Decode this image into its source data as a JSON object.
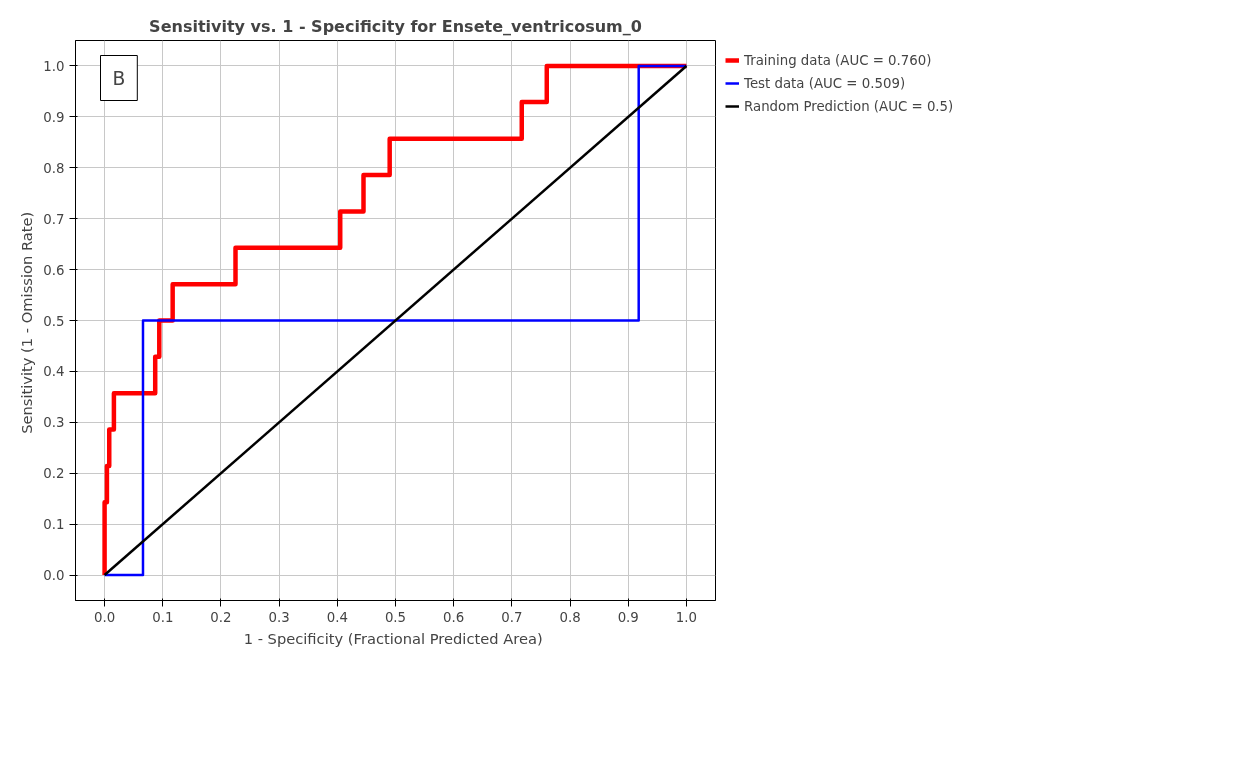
{
  "chart_data": {
    "type": "line",
    "title": "Sensitivity vs. 1 - Specificity for Ensete_ventricosum_0",
    "xlabel": "1 - Specificity  (Fractional Predicted Area)",
    "ylabel": "Sensitivity  (1 - Omission Rate)",
    "annotations": [
      "B"
    ],
    "series": [
      {
        "name": "Training data (AUC = 0.760)",
        "color": "#ff0000",
        "x": [
          0,
          0,
          0.004,
          0.004,
          0.008,
          0.008,
          0.016,
          0.016,
          0.087,
          0.087,
          0.094,
          0.094,
          0.117,
          0.117,
          0.225,
          0.225,
          0.405,
          0.405,
          0.445,
          0.445,
          0.49,
          0.49,
          0.717,
          0.717,
          0.76,
          0.76,
          1.0
        ],
        "values": [
          0,
          0.143,
          0.143,
          0.214,
          0.214,
          0.286,
          0.286,
          0.357,
          0.357,
          0.429,
          0.429,
          0.5,
          0.5,
          0.571,
          0.571,
          0.643,
          0.643,
          0.714,
          0.714,
          0.786,
          0.786,
          0.857,
          0.857,
          0.929,
          0.929,
          1.0,
          1.0
        ]
      },
      {
        "name": "Test data (AUC = 0.509)",
        "color": "#0000ff",
        "x": [
          0,
          0.066,
          0.066,
          0.918,
          0.918,
          1.0
        ],
        "values": [
          0,
          0,
          0.5,
          0.5,
          1.0,
          1.0
        ]
      },
      {
        "name": "Random Prediction (AUC = 0.5)",
        "color": "#000000",
        "x": [
          0,
          1.0
        ],
        "values": [
          0,
          1.0
        ]
      }
    ],
    "xlim": [
      -0.05,
      1.05
    ],
    "ylim": [
      -0.05,
      1.05
    ],
    "xticks": [
      {
        "value": 0,
        "label": "0.0"
      },
      0.1,
      0.2,
      0.3,
      0.4,
      0.5,
      0.6,
      0.7,
      0.8,
      0.9,
      {
        "value": 1,
        "label": "1.0"
      }
    ],
    "yticks": [
      {
        "value": 0,
        "label": "0.0"
      },
      0.1,
      0.2,
      0.3,
      0.4,
      0.5,
      0.6,
      0.7,
      0.8,
      0.9,
      {
        "value": 1,
        "label": "1.0"
      }
    ],
    "grid": true,
    "legend": "top right",
    "marker": "none",
    "line_style": "solid"
  }
}
